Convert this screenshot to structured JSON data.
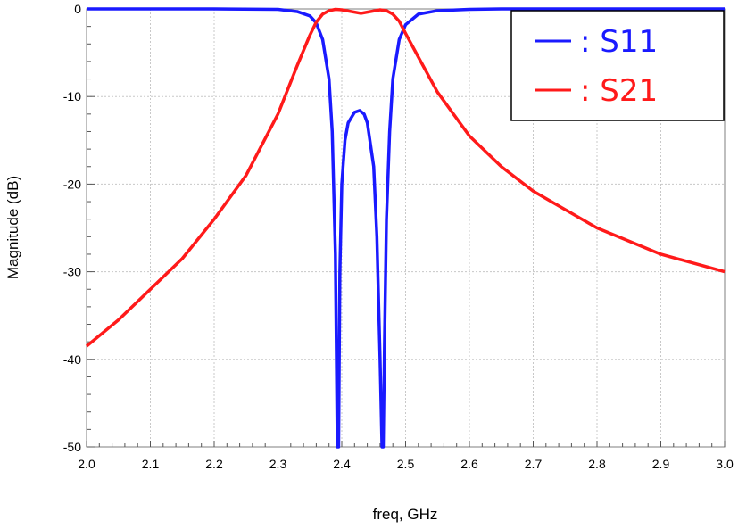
{
  "chart_data": {
    "type": "line",
    "xlabel": "freq, GHz",
    "ylabel": "Magnitude (dB)",
    "xlim": [
      2.0,
      3.0
    ],
    "ylim": [
      -50,
      0
    ],
    "x_ticks": [
      "2.0",
      "2.1",
      "2.2",
      "2.3",
      "2.4",
      "2.5",
      "2.6",
      "2.7",
      "2.8",
      "2.9",
      "3.0"
    ],
    "y_ticks": [
      "0",
      "-10",
      "-20",
      "-30",
      "-40",
      "-50"
    ],
    "grid": true,
    "legend_position": "top-right",
    "series": [
      {
        "name": "S11",
        "legend_label": ": S11",
        "color": "#1a1aff",
        "x": [
          2.0,
          2.2,
          2.3,
          2.33,
          2.35,
          2.36,
          2.37,
          2.38,
          2.385,
          2.39,
          2.393,
          2.395,
          2.397,
          2.4,
          2.405,
          2.41,
          2.42,
          2.428,
          2.435,
          2.44,
          2.45,
          2.455,
          2.46,
          2.463,
          2.465,
          2.467,
          2.47,
          2.475,
          2.48,
          2.49,
          2.5,
          2.52,
          2.55,
          2.6,
          2.65,
          3.0
        ],
        "y": [
          0,
          0,
          -0.05,
          -0.3,
          -0.8,
          -1.6,
          -3.5,
          -8,
          -14,
          -28,
          -50,
          -50,
          -30,
          -20,
          -15,
          -13,
          -11.8,
          -11.6,
          -12,
          -13,
          -18,
          -26,
          -40,
          -50,
          -50,
          -38,
          -24,
          -14,
          -8,
          -3.5,
          -1.8,
          -0.6,
          -0.2,
          -0.05,
          0,
          0
        ]
      },
      {
        "name": "S21",
        "legend_label": ": S21",
        "color": "#ff1a1a",
        "x": [
          2.0,
          2.05,
          2.1,
          2.15,
          2.2,
          2.25,
          2.3,
          2.33,
          2.35,
          2.36,
          2.37,
          2.38,
          2.39,
          2.4,
          2.43,
          2.46,
          2.47,
          2.48,
          2.49,
          2.5,
          2.52,
          2.55,
          2.6,
          2.65,
          2.7,
          2.8,
          2.9,
          3.0
        ],
        "y": [
          -38.5,
          -35.5,
          -32,
          -28.5,
          -24,
          -19,
          -12,
          -6.5,
          -3,
          -1.5,
          -0.6,
          -0.2,
          -0.05,
          -0.1,
          -0.5,
          -0.1,
          -0.2,
          -0.6,
          -1.4,
          -2.8,
          -5.5,
          -9.5,
          -14.5,
          -18,
          -20.8,
          -25,
          -28,
          -30
        ]
      }
    ]
  }
}
